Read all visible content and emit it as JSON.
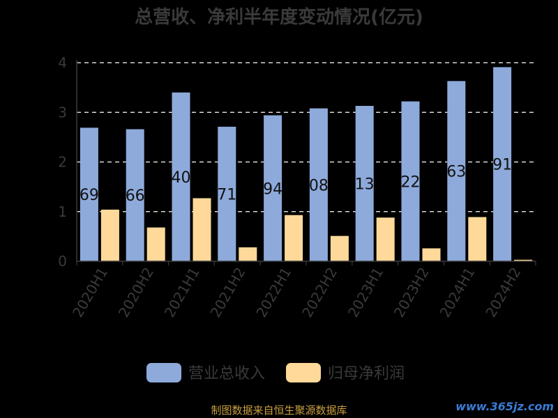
{
  "chart_data": {
    "type": "bar",
    "title": "总营收、净利半年度变动情况(亿元)",
    "categories": [
      "2020H1",
      "2020H2",
      "2021H1",
      "2021H2",
      "2022H1",
      "2022H2",
      "2023H1",
      "2023H2",
      "2024H1",
      "2024H2"
    ],
    "series": [
      {
        "name": "营业总收入",
        "color": "#8eaadb",
        "values": [
          2.69,
          2.66,
          3.4,
          2.71,
          2.94,
          3.08,
          3.13,
          3.22,
          3.63,
          3.91
        ],
        "labels": [
          "69",
          "66",
          "40",
          "71",
          "94",
          "08",
          "13",
          "22",
          "63",
          "91"
        ]
      },
      {
        "name": "归母净利润",
        "color": "#ffd999",
        "values": [
          1.04,
          0.68,
          1.27,
          0.28,
          0.93,
          0.51,
          0.88,
          0.26,
          0.89,
          0.03
        ]
      }
    ],
    "yticks": [
      0,
      1,
      2,
      3,
      4
    ],
    "ylim": [
      0,
      4.2
    ],
    "grid": true,
    "legend": "bottom"
  },
  "footer": {
    "source": "制图数据来自恒生聚源数据库",
    "watermark": "www.365jz.com"
  }
}
